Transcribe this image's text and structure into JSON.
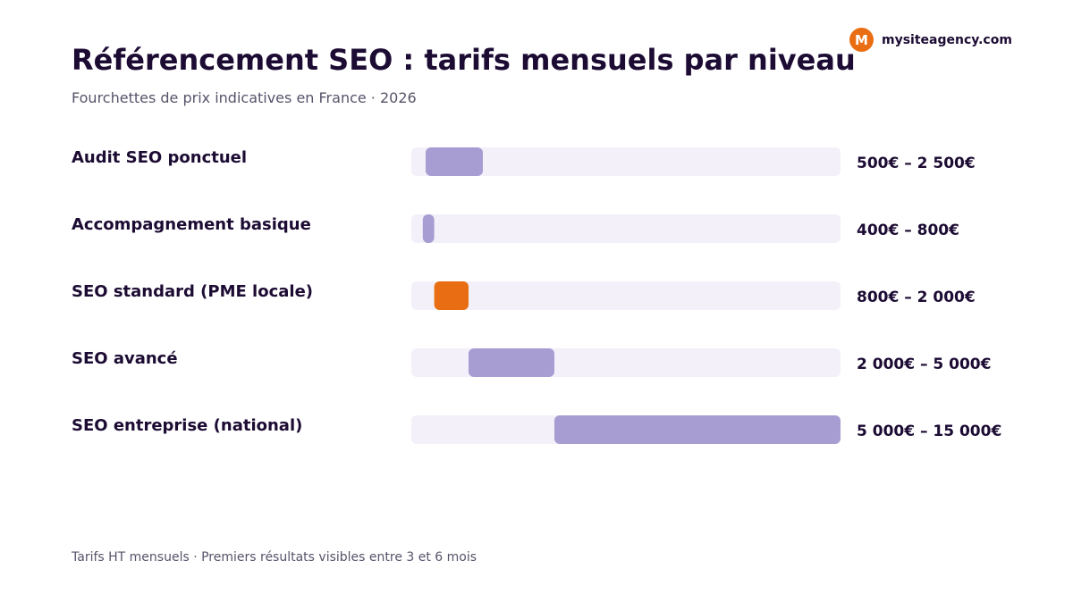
{
  "brand": {
    "logo_letter": "M",
    "name": "mysiteagency.com"
  },
  "title": "Référencement SEO : tarifs mensuels par niveau",
  "subtitle": "Fourchettes de prix indicatives en France · 2026",
  "footer": "Tarifs HT mensuels · Premiers résultats visibles entre 3 et 6 mois",
  "colors": {
    "title": "#1c0b33",
    "muted_text": "#58536a",
    "track": "#f3f0f9",
    "bar": "#a89dd2",
    "highlight": "#e96e13"
  },
  "chart_data": {
    "type": "bar",
    "orientation": "horizontal",
    "style": "range",
    "unit": "€",
    "xlim": [
      0,
      15000
    ],
    "categories": [
      "Audit SEO ponctuel",
      "Accompagnement basique",
      "SEO standard (PME locale)",
      "SEO avancé",
      "SEO entreprise (national)"
    ],
    "ranges": [
      [
        500,
        2500
      ],
      [
        400,
        800
      ],
      [
        800,
        2000
      ],
      [
        2000,
        5000
      ],
      [
        5000,
        15000
      ]
    ],
    "value_labels": [
      "500€ – 2 500€",
      "400€ – 800€",
      "800€ – 2 000€",
      "2 000€ – 5 000€",
      "5 000€ – 15 000€"
    ],
    "highlight_index": 2
  }
}
